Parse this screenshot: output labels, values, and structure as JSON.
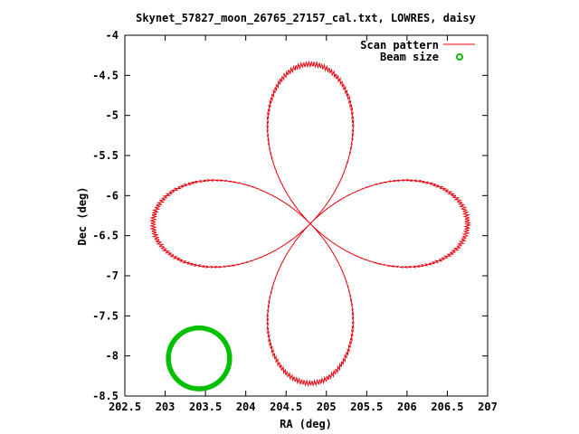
{
  "chart_data": {
    "type": "line",
    "title": "Skynet_57827_moon_26765_27157_cal.txt, LOWRES, daisy",
    "xlabel": "RA (deg)",
    "ylabel": "Dec (deg)",
    "xlim": [
      202.5,
      207
    ],
    "ylim": [
      -8.5,
      -4
    ],
    "xticks": [
      "202.5",
      "203",
      "203.5",
      "204",
      "204.5",
      "205",
      "205.5",
      "206",
      "206.5",
      "207"
    ],
    "yticks": [
      "-4",
      "-4.5",
      "-5",
      "-5.5",
      "-6",
      "-6.5",
      "-7",
      "-7.5",
      "-8",
      "-8.5"
    ],
    "legend_position": "top-right",
    "grid": false,
    "series": [
      {
        "name": "Scan pattern",
        "style": "line",
        "color": "#e8000b",
        "pattern": "daisy",
        "center": {
          "x": 204.8,
          "y": -6.35
        },
        "petal_radius_x": 1.95,
        "petal_radius_y": 1.99,
        "petals": 4
      },
      {
        "name": "Beam size",
        "style": "points",
        "color": "#00c000",
        "center": {
          "x": 203.42,
          "y": -8.03
        },
        "radius_x": 0.38,
        "radius_y": 0.38
      }
    ]
  }
}
